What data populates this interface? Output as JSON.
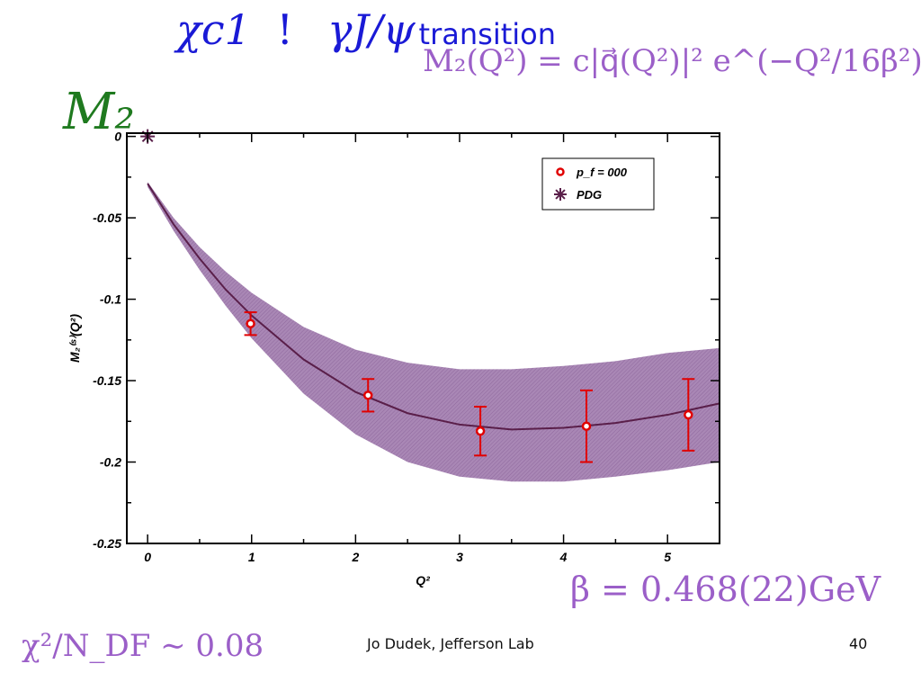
{
  "slide": {
    "title_math": "χc1 ",
    "title_bang": "!",
    "title_math2": "γJ/ψ",
    "title_word": "transition",
    "formula": "M₂(Q²) = c|q⃗(Q²)|² e^(−Q²/16β²)",
    "m2_label": "M₂",
    "beta_result": "β = 0.468(22)GeV",
    "chi_result": "χ²/N_DF ∼ 0.08",
    "footer": "Jo Dudek, Jefferson Lab",
    "page_number": "40"
  },
  "colors": {
    "title": "#1a1ad6",
    "formula": "#9b5fc8",
    "m2_label": "#1f7a1f",
    "band": "#8a5a9a",
    "fit_line": "#5a1f4a",
    "points": "#e00000",
    "pdg": "#5a1f4a"
  },
  "chart_data": {
    "type": "scatter",
    "xlabel": "Q²",
    "ylabel": "M₂⁽ˢ⁾(Q²)",
    "xlim": [
      -0.2,
      5.5
    ],
    "ylim": [
      -0.25,
      0.002
    ],
    "x_ticks": [
      0,
      1,
      2,
      3,
      4,
      5
    ],
    "x_tick_labels": [
      "0",
      "1",
      "2",
      "3",
      "4",
      "5"
    ],
    "y_ticks": [
      0,
      -0.05,
      -0.1,
      -0.15,
      -0.2,
      -0.25
    ],
    "y_tick_labels": [
      "0",
      "-0.05",
      "-0.1",
      "-0.15",
      "-0.2",
      "-0.25"
    ],
    "legend_position": "top-right",
    "legend": [
      "p_f = 000",
      "PDG"
    ],
    "series": [
      {
        "name": "p_f = 000",
        "marker": "circle",
        "x": [
          0.99,
          2.12,
          3.2,
          4.22,
          5.2
        ],
        "y": [
          -0.115,
          -0.159,
          -0.181,
          -0.178,
          -0.171
        ],
        "err": [
          0.007,
          0.01,
          0.015,
          0.022,
          0.022
        ]
      },
      {
        "name": "PDG",
        "marker": "asterisk",
        "x": [
          0.0
        ],
        "y": [
          0.0
        ]
      }
    ],
    "fit": {
      "x": [
        0.0,
        0.25,
        0.5,
        0.75,
        1.0,
        1.5,
        2.0,
        2.5,
        3.0,
        3.5,
        4.0,
        4.5,
        5.0,
        5.5
      ],
      "y": [
        -0.029,
        -0.054,
        -0.075,
        -0.094,
        -0.11,
        -0.137,
        -0.157,
        -0.17,
        -0.177,
        -0.18,
        -0.179,
        -0.176,
        -0.171,
        -0.164
      ]
    },
    "band": {
      "x": [
        0.0,
        0.25,
        0.5,
        0.75,
        1.0,
        1.5,
        2.0,
        2.5,
        3.0,
        3.5,
        4.0,
        4.5,
        5.0,
        5.5
      ],
      "upper": [
        -0.028,
        -0.05,
        -0.068,
        -0.083,
        -0.096,
        -0.117,
        -0.131,
        -0.139,
        -0.143,
        -0.143,
        -0.141,
        -0.138,
        -0.133,
        -0.13
      ],
      "lower": [
        -0.031,
        -0.058,
        -0.082,
        -0.104,
        -0.124,
        -0.158,
        -0.183,
        -0.2,
        -0.209,
        -0.212,
        -0.212,
        -0.209,
        -0.205,
        -0.2
      ]
    }
  }
}
